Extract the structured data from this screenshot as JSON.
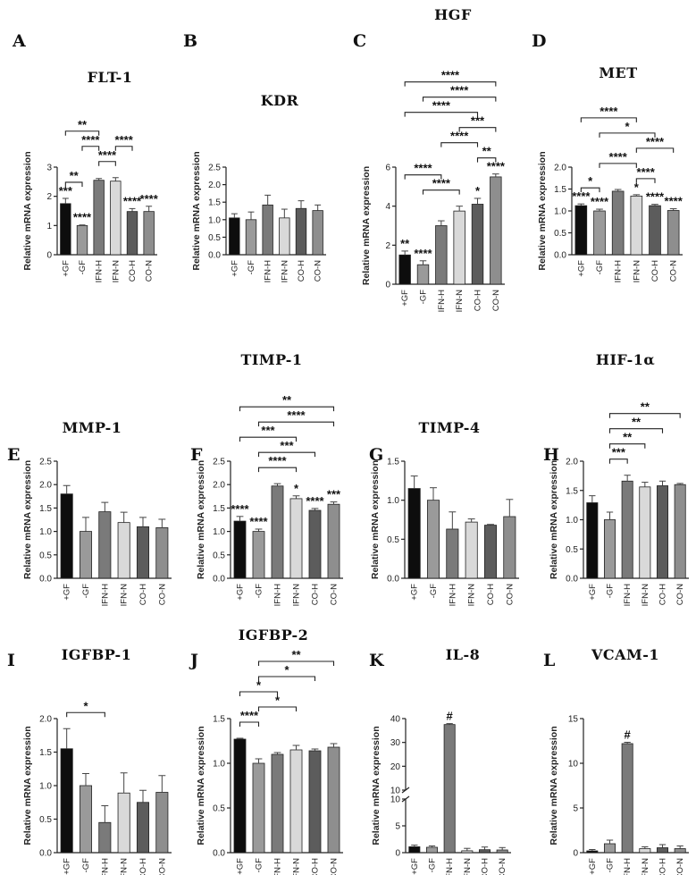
{
  "colors": {
    "bar_fills": [
      "#0d0d0d",
      "#9a9a9a",
      "#7a7a7a",
      "#d9d9d9",
      "#5c5c5c",
      "#8e8e8e"
    ],
    "axis": "#222222"
  },
  "chart_data": [
    {
      "letter": "A",
      "title": "FLT-1",
      "type": "bar",
      "categories": [
        "+GF",
        "-GF",
        "IFN-H",
        "IFN-N",
        "CO-H",
        "CO-N"
      ],
      "values": [
        1.75,
        1.0,
        2.55,
        2.52,
        1.48,
        1.48
      ],
      "errors": [
        0.18,
        0.02,
        0.06,
        0.12,
        0.1,
        0.18
      ],
      "ylim": [
        0,
        3
      ],
      "yticks": [
        "0",
        "1",
        "2",
        "3"
      ],
      "ylabel": "Relative mRNA expression",
      "bar_labels": [
        "***",
        "****",
        "",
        "",
        "****",
        "****"
      ],
      "brackets": [
        {
          "from": 1,
          "to": 2,
          "label": "**"
        },
        {
          "from": 3,
          "to": 4,
          "label": "****"
        },
        {
          "from": 2,
          "to": 3,
          "label": "****"
        },
        {
          "from": 4,
          "to": 5,
          "label": "****"
        },
        {
          "from": 1,
          "to": 3,
          "label": "**"
        }
      ]
    },
    {
      "letter": "B",
      "title": "KDR",
      "type": "bar",
      "categories": [
        "+GF",
        "-GF",
        "IFN-H",
        "IFN-N",
        "CO-H",
        "CO-N"
      ],
      "values": [
        1.05,
        1.0,
        1.42,
        1.05,
        1.32,
        1.26
      ],
      "errors": [
        0.12,
        0.22,
        0.28,
        0.25,
        0.22,
        0.16
      ],
      "ylim": [
        0,
        2.5
      ],
      "yticks": [
        "0.0",
        "0.5",
        "1.0",
        "1.5",
        "2.0",
        "2.5"
      ],
      "ylabel": "Relative mRNA expression",
      "bar_labels": [
        "",
        "",
        "",
        "",
        "",
        ""
      ],
      "brackets": []
    },
    {
      "letter": "C",
      "title": "HGF",
      "type": "bar",
      "categories": [
        "+GF",
        "-GF",
        "IFN-H",
        "IFN-N",
        "CO-H",
        "CO-N"
      ],
      "values": [
        1.5,
        1.0,
        3.0,
        3.75,
        4.1,
        5.5
      ],
      "errors": [
        0.2,
        0.2,
        0.25,
        0.25,
        0.3,
        0.15
      ],
      "ylim": [
        0,
        6
      ],
      "yticks": [
        "0",
        "2",
        "4",
        "6"
      ],
      "ylabel": "Relative mRNA expression",
      "bar_labels": [
        "**",
        "****",
        "",
        "",
        "*",
        "****"
      ],
      "brackets": [
        {
          "from": 2,
          "to": 4,
          "label": "****"
        },
        {
          "from": 5,
          "to": 6,
          "label": "**"
        },
        {
          "from": 1,
          "to": 3,
          "label": "****"
        },
        {
          "from": 3,
          "to": 5,
          "label": "****"
        },
        {
          "from": 4,
          "to": 6,
          "label": "***"
        },
        {
          "from": 1,
          "to": 5,
          "label": "****"
        },
        {
          "from": 2,
          "to": 6,
          "label": "****"
        },
        {
          "from": 1,
          "to": 6,
          "label": "****"
        }
      ]
    },
    {
      "letter": "D",
      "title": "MET",
      "type": "bar",
      "categories": [
        "+GF",
        "-GF",
        "IFN-H",
        "IFN-N",
        "CO-H",
        "CO-N"
      ],
      "values": [
        1.12,
        1.0,
        1.45,
        1.34,
        1.12,
        1.01
      ],
      "errors": [
        0.04,
        0.04,
        0.04,
        0.03,
        0.03,
        0.04
      ],
      "ylim": [
        0,
        2.0
      ],
      "yticks": [
        "0.0",
        "0.5",
        "1.0",
        "1.5",
        "2.0"
      ],
      "ylabel": "Relative mRNA expression",
      "bar_labels": [
        "****",
        "****",
        "",
        "*",
        "****",
        "****"
      ],
      "brackets": [
        {
          "from": 1,
          "to": 2,
          "label": "*"
        },
        {
          "from": 4,
          "to": 5,
          "label": "****"
        },
        {
          "from": 2,
          "to": 4,
          "label": "****"
        },
        {
          "from": 4,
          "to": 6,
          "label": "****"
        },
        {
          "from": 2,
          "to": 5,
          "label": "*"
        },
        {
          "from": 1,
          "to": 4,
          "label": "****"
        }
      ]
    },
    {
      "letter": "E",
      "title": "MMP-1",
      "type": "bar",
      "categories": [
        "+GF",
        "-GF",
        "IFN-H",
        "IFN-N",
        "CO-H",
        "CO-N"
      ],
      "values": [
        1.8,
        1.0,
        1.42,
        1.19,
        1.1,
        1.08
      ],
      "errors": [
        0.18,
        0.3,
        0.2,
        0.22,
        0.2,
        0.18
      ],
      "ylim": [
        0,
        2.5
      ],
      "yticks": [
        "0.0",
        "0.5",
        "1.0",
        "1.5",
        "2.0",
        "2.5"
      ],
      "ylabel": "Relative mRNA expression",
      "bar_labels": [
        "",
        "",
        "",
        "",
        "",
        ""
      ],
      "brackets": []
    },
    {
      "letter": "F",
      "title": "TIMP-1",
      "type": "bar",
      "categories": [
        "+GF",
        "-GF",
        "IFN-H",
        "IFN-N",
        "CO-H",
        "CO-N"
      ],
      "values": [
        1.22,
        1.0,
        1.97,
        1.7,
        1.45,
        1.58
      ],
      "errors": [
        0.1,
        0.05,
        0.05,
        0.06,
        0.04,
        0.05
      ],
      "ylim": [
        0,
        2.5
      ],
      "yticks": [
        "0.0",
        "0.5",
        "1.0",
        "1.5",
        "2.0",
        "2.5"
      ],
      "ylabel": "Relative mRNA expression",
      "bar_labels": [
        "****",
        "****",
        "",
        "*",
        "****",
        "***"
      ],
      "brackets": [
        {
          "from": 2,
          "to": 4,
          "label": "****"
        },
        {
          "from": 2,
          "to": 5,
          "label": "***"
        },
        {
          "from": 1,
          "to": 4,
          "label": "***"
        },
        {
          "from": 2,
          "to": 6,
          "label": "****"
        },
        {
          "from": 1,
          "to": 6,
          "label": "**"
        }
      ]
    },
    {
      "letter": "G",
      "title": "TIMP-4",
      "type": "bar",
      "categories": [
        "+GF",
        "-GF",
        "IFN-H",
        "IFN-N",
        "CO-H",
        "CO-N"
      ],
      "values": [
        1.15,
        1.0,
        0.63,
        0.72,
        0.68,
        0.79
      ],
      "errors": [
        0.16,
        0.16,
        0.22,
        0.04,
        0.01,
        0.22
      ],
      "ylim": [
        0,
        1.5
      ],
      "yticks": [
        "0.0",
        "0.5",
        "1.0",
        "1.5"
      ],
      "ylabel": "Relative mRNA expression",
      "bar_labels": [
        "",
        "",
        "",
        "",
        "",
        ""
      ],
      "brackets": []
    },
    {
      "letter": "H",
      "title": "HIF-1α",
      "type": "bar",
      "categories": [
        "+GF",
        "-GF",
        "IFN-H",
        "IFN-N",
        "CO-H",
        "CO-N"
      ],
      "values": [
        1.29,
        1.0,
        1.66,
        1.56,
        1.58,
        1.6
      ],
      "errors": [
        0.12,
        0.13,
        0.1,
        0.08,
        0.08,
        0.02
      ],
      "ylim": [
        0,
        2.0
      ],
      "yticks": [
        "0.0",
        "0.5",
        "1.0",
        "1.5",
        "2.0"
      ],
      "ylabel": "Relative mRNA expression",
      "bar_labels": [
        "",
        "",
        "",
        "",
        "",
        ""
      ],
      "brackets": [
        {
          "from": 2,
          "to": 3,
          "label": "***"
        },
        {
          "from": 2,
          "to": 4,
          "label": "**"
        },
        {
          "from": 2,
          "to": 5,
          "label": "**"
        },
        {
          "from": 2,
          "to": 6,
          "label": "**"
        }
      ]
    },
    {
      "letter": "I",
      "title": "IGFBP-1",
      "type": "bar",
      "categories": [
        "+GF",
        "-GF",
        "IFN-H",
        "IFN-N",
        "CO-H",
        "CO-N"
      ],
      "values": [
        1.55,
        1.0,
        0.45,
        0.89,
        0.75,
        0.9
      ],
      "errors": [
        0.3,
        0.18,
        0.25,
        0.3,
        0.18,
        0.25
      ],
      "ylim": [
        0,
        2.0
      ],
      "yticks": [
        "0.0",
        "0.5",
        "1.0",
        "1.5",
        "2.0"
      ],
      "ylabel": "Relative mRNA expression",
      "bar_labels": [
        "",
        "",
        "",
        "",
        "",
        ""
      ],
      "brackets": [
        {
          "from": 1,
          "to": 3,
          "label": "*"
        }
      ]
    },
    {
      "letter": "J",
      "title": "IGFBP-2",
      "type": "bar",
      "categories": [
        "+GF",
        "-GF",
        "IFN-H",
        "IFN-N",
        "CO-H",
        "CO-N"
      ],
      "values": [
        1.27,
        1.0,
        1.1,
        1.15,
        1.14,
        1.18
      ],
      "errors": [
        0.01,
        0.05,
        0.02,
        0.05,
        0.02,
        0.04
      ],
      "ylim": [
        0,
        1.5
      ],
      "yticks": [
        "0.0",
        "0.5",
        "1.0",
        "1.5"
      ],
      "ylabel": "Relative mRNA expression",
      "bar_labels": [
        "",
        "",
        "",
        "",
        "",
        ""
      ],
      "brackets": [
        {
          "from": 1,
          "to": 2,
          "label": "****"
        },
        {
          "from": 2,
          "to": 4,
          "label": "*"
        },
        {
          "from": 1,
          "to": 3,
          "label": "*"
        },
        {
          "from": 2,
          "to": 5,
          "label": "*"
        },
        {
          "from": 2,
          "to": 6,
          "label": "**"
        }
      ]
    },
    {
      "letter": "K",
      "title": "IL-8",
      "type": "bar",
      "categories": [
        "+GF",
        "-GF",
        "IFN-H",
        "IFN-N",
        "CO-H",
        "CO-N"
      ],
      "values": [
        1.1,
        1.0,
        37.5,
        0.35,
        0.55,
        0.5
      ],
      "errors": [
        0.3,
        0.25,
        0.4,
        0.45,
        0.5,
        0.45
      ],
      "broken_axis": true,
      "ylim_lower": [
        0,
        10
      ],
      "ylim_upper": [
        10,
        40
      ],
      "yticks": [
        "0",
        "5",
        "10",
        "10",
        "20",
        "30",
        "40"
      ],
      "ylabel": "Relative mRNA expression",
      "bar_labels": [
        "",
        "",
        "#",
        "",
        "",
        ""
      ],
      "brackets": []
    },
    {
      "letter": "L",
      "title": "VCAM-1",
      "type": "bar",
      "categories": [
        "+GF",
        "-GF",
        "IFN-H",
        "IFN-N",
        "CO-H",
        "CO-N"
      ],
      "values": [
        0.2,
        1.0,
        12.2,
        0.45,
        0.55,
        0.45
      ],
      "errors": [
        0.15,
        0.4,
        0.15,
        0.2,
        0.35,
        0.3
      ],
      "ylim": [
        0,
        15
      ],
      "yticks": [
        "0",
        "5",
        "10",
        "15"
      ],
      "ylabel": "Relative mRNA expression",
      "bar_labels": [
        "",
        "",
        "#",
        "",
        "",
        ""
      ],
      "brackets": []
    }
  ]
}
